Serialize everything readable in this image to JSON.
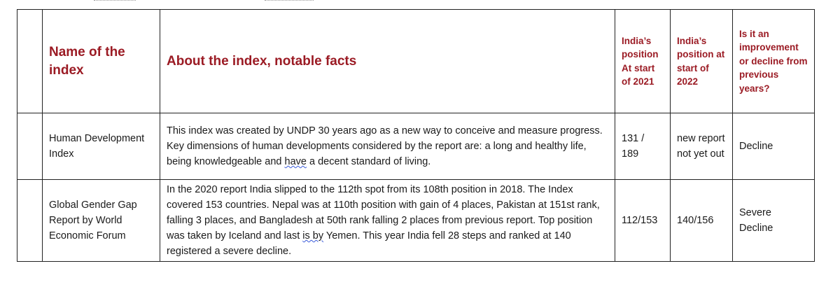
{
  "table": {
    "headers": {
      "name": "Name of the index",
      "about": "About the index, notable facts",
      "pos_2021": "India’s position At start of 2021",
      "pos_2022": "India’s position at start of 2022",
      "trend": "Is it an improvement or decline from previous years?"
    },
    "rows": [
      {
        "name": "Human Development Index",
        "about_before": "This index was created by UNDP 30 years ago as a new way to conceive and measure progress. Key dimensions of human developments considered by the report are: a long and healthy life, being knowledgeable and ",
        "about_flagged": "have",
        "about_after": " a decent standard of living.",
        "pos_2021": "131 / 189",
        "pos_2022": "new report not yet out",
        "trend": "Decline"
      },
      {
        "name": "Global Gender Gap Report by World Economic Forum",
        "about_before": "In the 2020 report India slipped to the 112th spot from its 108th position in 2018. The Index covered 153 countries. Nepal was at 110th position with gain of 4 places, Pakistan at 151st rank, falling 3 places, and Bangladesh at 50th rank falling 2 places from previous report. Top position was taken by Iceland and last ",
        "about_flagged": "is by",
        "about_after": " Yemen. This year India fell 28 steps and ranked at 140 registered a severe decline.",
        "pos_2021": "112/153",
        "pos_2022": "140/156",
        "trend": "Severe Decline"
      }
    ]
  }
}
